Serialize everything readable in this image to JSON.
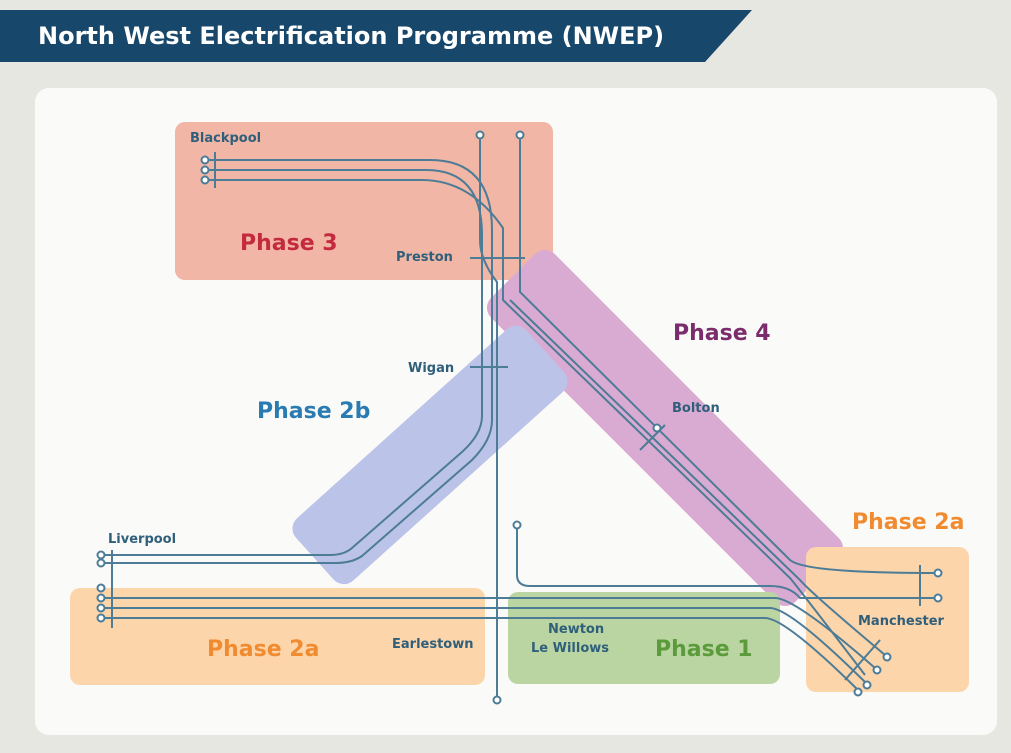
{
  "header": {
    "title": "North West Electrification Programme (NWEP)"
  },
  "phases": [
    {
      "label": "Phase 3"
    },
    {
      "label": "Phase 4"
    },
    {
      "label": "Phase 2b"
    },
    {
      "label": "Phase 2a"
    },
    {
      "label": "Phase 1"
    },
    {
      "label": "Phase 2a"
    }
  ],
  "stations": [
    {
      "label": "Blackpool"
    },
    {
      "label": "Preston"
    },
    {
      "label": "Wigan"
    },
    {
      "label": "Bolton"
    },
    {
      "label": "Liverpool"
    },
    {
      "label": "Earlestown"
    },
    {
      "label": "Newton"
    },
    {
      "label": "Le Willows"
    },
    {
      "label": "Manchester"
    }
  ]
}
